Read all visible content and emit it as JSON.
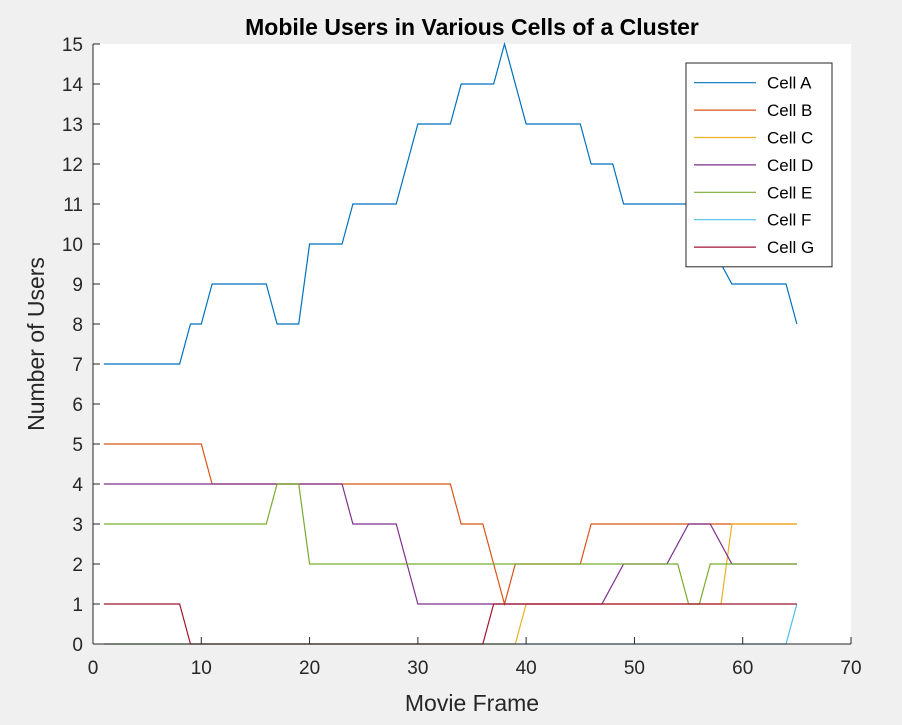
{
  "chart_data": {
    "type": "line",
    "title": "Mobile Users in Various Cells of a Cluster",
    "xlabel": "Movie Frame",
    "ylabel": "Number of Users",
    "xlim": [
      0,
      70
    ],
    "ylim": [
      0,
      15
    ],
    "xticks": [
      0,
      10,
      20,
      30,
      40,
      50,
      60,
      70
    ],
    "yticks": [
      0,
      1,
      2,
      3,
      4,
      5,
      6,
      7,
      8,
      9,
      10,
      11,
      12,
      13,
      14,
      15
    ],
    "grid": false,
    "legend_position": "top-right",
    "series": [
      {
        "name": "Cell A",
        "color": "#0072BD",
        "points": [
          [
            1,
            7
          ],
          [
            8,
            7
          ],
          [
            9,
            8
          ],
          [
            10,
            8
          ],
          [
            11,
            9
          ],
          [
            16,
            9
          ],
          [
            17,
            8
          ],
          [
            19,
            8
          ],
          [
            20,
            10
          ],
          [
            23,
            10
          ],
          [
            24,
            11
          ],
          [
            28,
            11
          ],
          [
            30,
            13
          ],
          [
            33,
            13
          ],
          [
            34,
            14
          ],
          [
            37,
            14
          ],
          [
            38,
            15
          ],
          [
            40,
            13
          ],
          [
            45,
            13
          ],
          [
            46,
            12
          ],
          [
            48,
            12
          ],
          [
            49,
            11
          ],
          [
            55,
            11
          ],
          [
            56,
            10
          ],
          [
            57,
            10
          ],
          [
            59,
            9
          ],
          [
            64,
            9
          ],
          [
            65,
            8
          ]
        ]
      },
      {
        "name": "Cell B",
        "color": "#D95319",
        "points": [
          [
            1,
            5
          ],
          [
            10,
            5
          ],
          [
            11,
            4
          ],
          [
            33,
            4
          ],
          [
            34,
            3
          ],
          [
            36,
            3
          ],
          [
            38,
            1
          ],
          [
            39,
            2
          ],
          [
            45,
            2
          ],
          [
            46,
            3
          ],
          [
            65,
            3
          ]
        ]
      },
      {
        "name": "Cell C",
        "color": "#EDB120",
        "points": [
          [
            1,
            0
          ],
          [
            39,
            0
          ],
          [
            40,
            1
          ],
          [
            58,
            1
          ],
          [
            59,
            3
          ],
          [
            65,
            3
          ]
        ]
      },
      {
        "name": "Cell D",
        "color": "#7E2F8E",
        "points": [
          [
            1,
            4
          ],
          [
            23,
            4
          ],
          [
            24,
            3
          ],
          [
            28,
            3
          ],
          [
            30,
            1
          ],
          [
            47,
            1
          ],
          [
            49,
            2
          ],
          [
            53,
            2
          ],
          [
            55,
            3
          ],
          [
            57,
            3
          ],
          [
            59,
            2
          ],
          [
            65,
            2
          ]
        ]
      },
      {
        "name": "Cell E",
        "color": "#77AC30",
        "points": [
          [
            1,
            3
          ],
          [
            16,
            3
          ],
          [
            17,
            4
          ],
          [
            19,
            4
          ],
          [
            20,
            2
          ],
          [
            54,
            2
          ],
          [
            55,
            1
          ],
          [
            56,
            1
          ],
          [
            57,
            2
          ],
          [
            65,
            2
          ]
        ]
      },
      {
        "name": "Cell F",
        "color": "#4DBEEE",
        "points": [
          [
            1,
            0
          ],
          [
            64,
            0
          ],
          [
            65,
            1
          ]
        ]
      },
      {
        "name": "Cell G",
        "color": "#A2142F",
        "points": [
          [
            1,
            1
          ],
          [
            8,
            1
          ],
          [
            9,
            0
          ],
          [
            36,
            0
          ],
          [
            37,
            1
          ],
          [
            65,
            1
          ]
        ]
      }
    ]
  }
}
